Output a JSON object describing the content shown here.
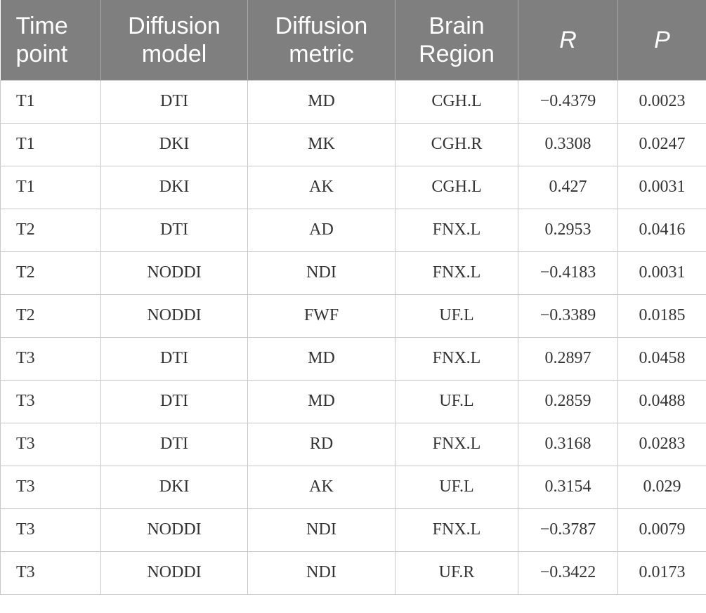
{
  "table": {
    "headers": [
      "Time\npoint",
      "Diffusion\nmodel",
      "Diffusion\nmetric",
      "Brain\nRegion",
      "R",
      "P"
    ],
    "rows": [
      [
        "T1",
        "DTI",
        "MD",
        "CGH.L",
        "−0.4379",
        "0.0023"
      ],
      [
        "T1",
        "DKI",
        "MK",
        "CGH.R",
        "0.3308",
        "0.0247"
      ],
      [
        "T1",
        "DKI",
        "AK",
        "CGH.L",
        "0.427",
        "0.0031"
      ],
      [
        "T2",
        "DTI",
        "AD",
        "FNX.L",
        "0.2953",
        "0.0416"
      ],
      [
        "T2",
        "NODDI",
        "NDI",
        "FNX.L",
        "−0.4183",
        "0.0031"
      ],
      [
        "T2",
        "NODDI",
        "FWF",
        "UF.L",
        "−0.3389",
        "0.0185"
      ],
      [
        "T3",
        "DTI",
        "MD",
        "FNX.L",
        "0.2897",
        "0.0458"
      ],
      [
        "T3",
        "DTI",
        "MD",
        "UF.L",
        "0.2859",
        "0.0488"
      ],
      [
        "T3",
        "DTI",
        "RD",
        "FNX.L",
        "0.3168",
        "0.0283"
      ],
      [
        "T3",
        "DKI",
        "AK",
        "UF.L",
        "0.3154",
        "0.029"
      ],
      [
        "T3",
        "NODDI",
        "NDI",
        "FNX.L",
        "−0.3787",
        "0.0079"
      ],
      [
        "T3",
        "NODDI",
        "NDI",
        "UF.R",
        "−0.3422",
        "0.0173"
      ]
    ]
  }
}
